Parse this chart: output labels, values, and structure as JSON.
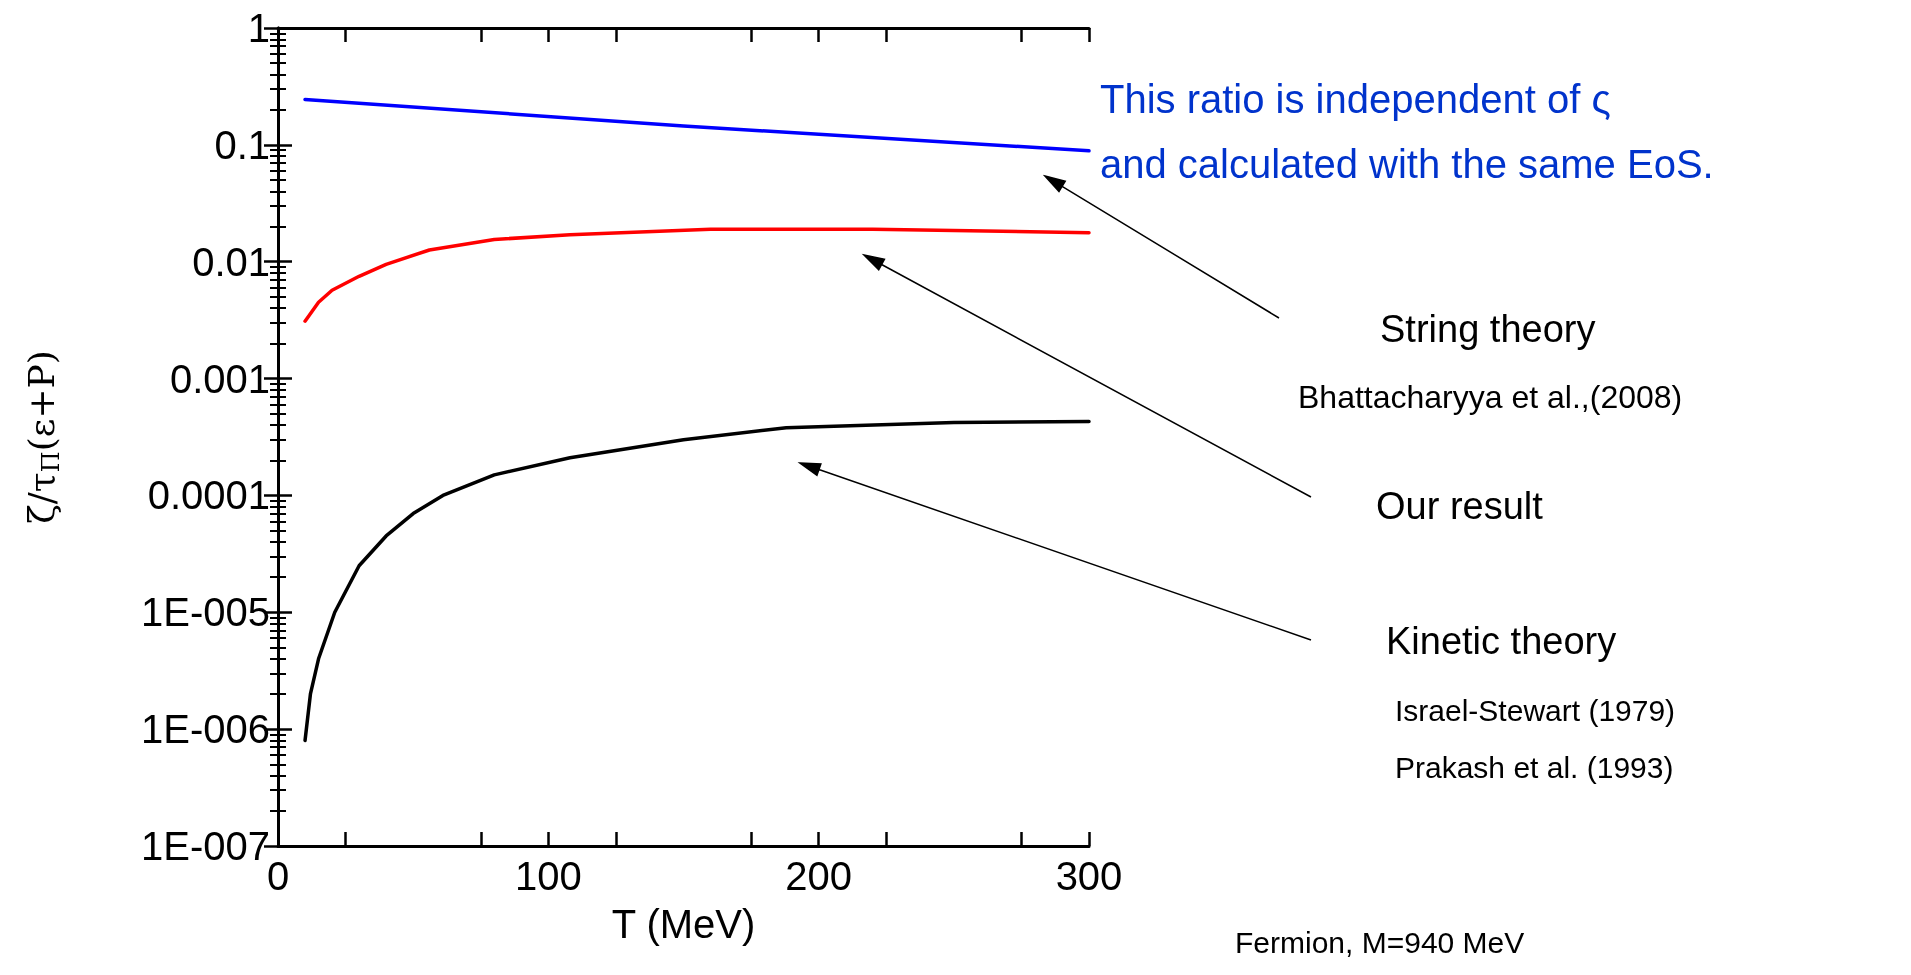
{
  "chart_data": {
    "type": "line",
    "xlabel": "T (MeV)",
    "ylabel": "ζ/τ$_{Π}$(ε+P)",
    "log": "y",
    "xlim": [
      0,
      300
    ],
    "xticks": [
      0,
      100,
      200,
      300
    ],
    "ylim": [
      1e-07,
      1
    ],
    "yticks": [
      {
        "value": 1e-07,
        "label": "1E-007"
      },
      {
        "value": 1e-06,
        "label": "1E-006"
      },
      {
        "value": 1e-05,
        "label": "1E-005"
      },
      0.0001,
      0.001,
      0.01,
      0.1,
      1
    ],
    "grid": false,
    "marker": "none",
    "line_style": "solid",
    "series": [
      {
        "color": "#0000ff",
        "x": [
          10,
          150,
          300
        ],
        "values": [
          0.245,
          0.145,
          0.089
        ]
      },
      {
        "color": "#ff0000",
        "x": [
          10,
          15,
          20,
          30,
          40,
          56,
          80,
          108,
          160,
          220,
          300
        ],
        "values": [
          0.0031,
          0.0045,
          0.0057,
          0.0075,
          0.0095,
          0.0126,
          0.0155,
          0.017,
          0.019,
          0.019,
          0.0177
        ]
      },
      {
        "color": "#000000",
        "x": [
          10,
          12,
          15,
          21,
          30,
          40,
          50,
          61,
          80,
          108,
          150,
          188,
          250,
          300
        ],
        "values": [
          8e-07,
          2e-06,
          4e-06,
          1e-05,
          2.5e-05,
          4.5e-05,
          7e-05,
          0.0001,
          0.00015,
          0.00021,
          0.0003,
          0.00038,
          0.00042,
          0.00043
        ]
      }
    ],
    "annotations": [
      "This ratio is independent of ς",
      "and calculated with the same EoS.",
      "String theory",
      "Bhattacharyya et al.,(2008)",
      "Our result",
      "Kinetic theory",
      "Israel-Stewart (1979)",
      "Prakash et al. (1993)",
      "Fermion, M=940 MeV"
    ]
  }
}
